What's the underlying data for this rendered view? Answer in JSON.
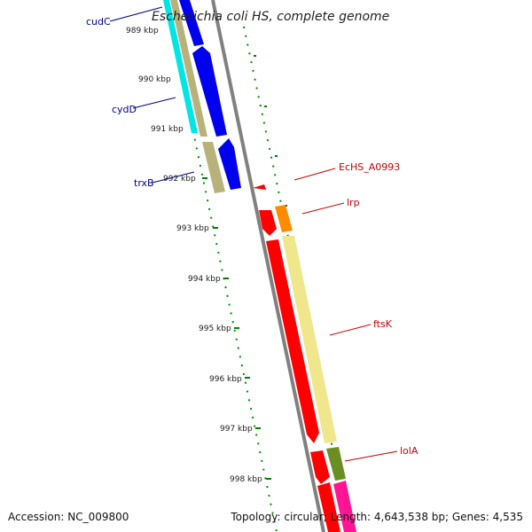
{
  "title": "Escherichia coli HS, complete genome",
  "footer": {
    "accession": "Accession: NC_009800",
    "topology": "Topology: circular; Length: 4,643,538 bp; Genes: 4,535"
  },
  "ticks": [
    "989 kbp",
    "990 kbp",
    "991 kbp",
    "992 kbp",
    "993 kbp",
    "994 kbp",
    "995 kbp",
    "996 kbp",
    "997 kbp",
    "998 kbp"
  ],
  "genes_left": [
    {
      "label": "cudC",
      "color": "#00008b"
    },
    {
      "label": "cydD",
      "color": "#00008b"
    },
    {
      "label": "trxB",
      "color": "#00008b"
    }
  ],
  "genes_right": [
    {
      "label": "EcHS_A0993",
      "color": "#cc0000"
    },
    {
      "label": "lrp",
      "color": "#cc0000"
    },
    {
      "label": "ftsK",
      "color": "#cc0000"
    },
    {
      "label": "lolA",
      "color": "#cc0000"
    }
  ],
  "colors": {
    "backbone": "#808080",
    "tick_dots": "#008000",
    "cyan": "#00e5e5",
    "khaki": "#b8b27a",
    "blue": "#0000ee",
    "red": "#ff0000",
    "orange": "#ff8c00",
    "pale_yellow": "#f0e68c",
    "olive": "#6b8e23",
    "pink": "#ff1493"
  }
}
